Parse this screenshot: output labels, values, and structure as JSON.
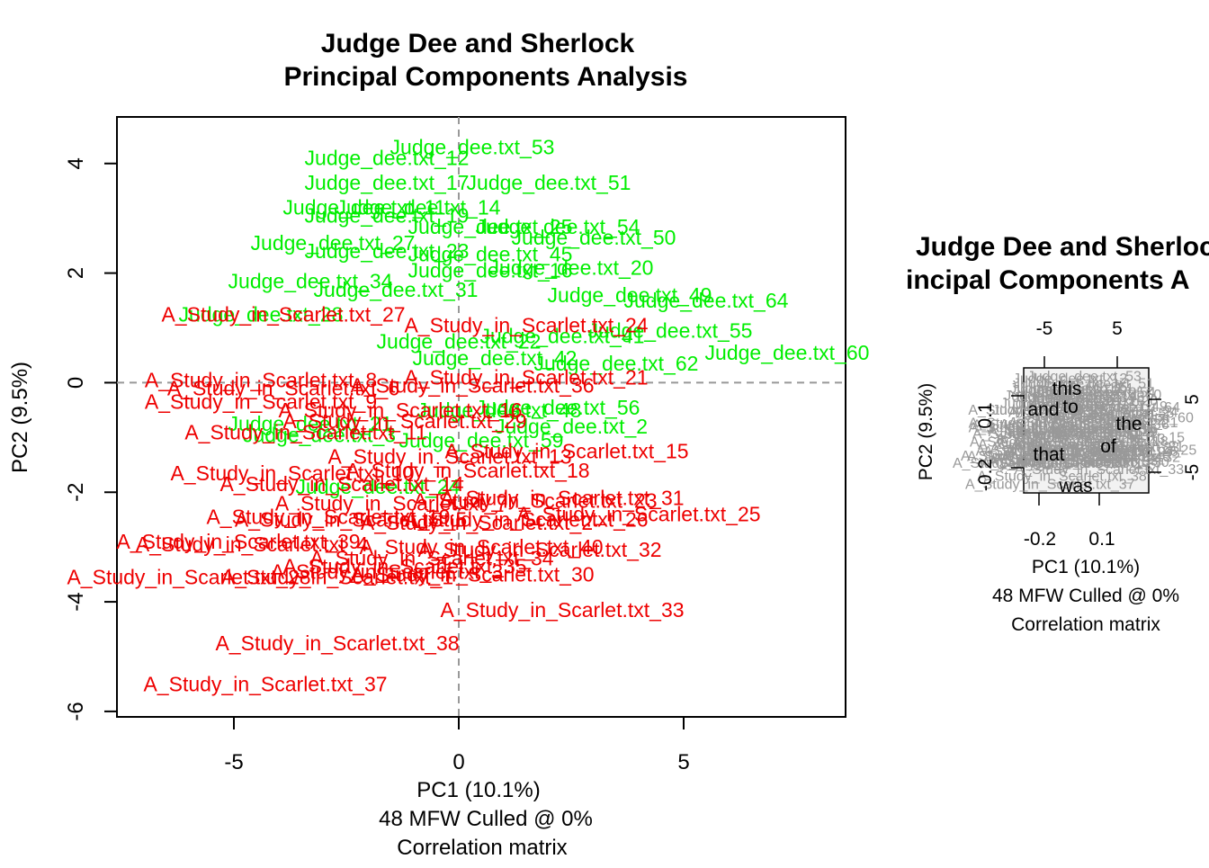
{
  "colors": {
    "judge": "#00ee00",
    "scarlet": "#ee0000",
    "axis": "#000000",
    "guide": "#999999",
    "secondary_labels": "#999999"
  },
  "chart_data": [
    {
      "type": "scatter",
      "title": "Judge Dee and Sherlock\nPrincipal Components Analysis",
      "title_lines": [
        "Judge Dee and Sherlock",
        "Principal Components Analysis"
      ],
      "xlabel": "PC1 (10.1%)",
      "ylabel": "PC2 (9.5%)",
      "sublabels": [
        "48 MFW  Culled @ 0%",
        "Correlation matrix"
      ],
      "xlim": [
        -7.6,
        8.6
      ],
      "ylim": [
        -6.1,
        4.85
      ],
      "xticks": [
        -5,
        0,
        5
      ],
      "yticks": [
        -6,
        -4,
        -2,
        0,
        2,
        4
      ],
      "grid": false,
      "zero_lines": true,
      "legend": "none",
      "series": [
        {
          "name": "Judge_dee",
          "points": [
            {
              "label": "Judge_dee.txt_53",
              "x": 0.3,
              "y": 4.3
            },
            {
              "label": "Judge_dee.txt_12",
              "x": -1.6,
              "y": 4.1
            },
            {
              "label": "Judge_dee.txt_17",
              "x": -1.6,
              "y": 3.65
            },
            {
              "label": "Judge_dee.txt_51",
              "x": 2.0,
              "y": 3.65
            },
            {
              "label": "Judge_dee.txt_11",
              "x": -2.1,
              "y": 3.2
            },
            {
              "label": "Judge_dee.txt_14",
              "x": -0.9,
              "y": 3.2
            },
            {
              "label": "Judge_dee.txt_19",
              "x": -1.6,
              "y": 3.05
            },
            {
              "label": "Judge_dee.txt_25",
              "x": 0.7,
              "y": 2.85
            },
            {
              "label": "Judge_dee.txt_54",
              "x": 2.2,
              "y": 2.85
            },
            {
              "label": "Judge_dee.txt_50",
              "x": 3.0,
              "y": 2.65
            },
            {
              "label": "Judge_dee.txt_27",
              "x": -2.8,
              "y": 2.55
            },
            {
              "label": "Judge_dee.txt_23",
              "x": -1.6,
              "y": 2.4
            },
            {
              "label": "Judge_dee.txt_45",
              "x": 0.7,
              "y": 2.35
            },
            {
              "label": "Judge_dee.txt_20",
              "x": 2.5,
              "y": 2.1
            },
            {
              "label": "Judge_dee.txt_16",
              "x": 0.7,
              "y": 2.05
            },
            {
              "label": "Judge_dee.txt_34",
              "x": -3.3,
              "y": 1.85
            },
            {
              "label": "Judge_dee.txt_31",
              "x": -1.4,
              "y": 1.7
            },
            {
              "label": "Judge_dee.txt_49",
              "x": 3.8,
              "y": 1.6
            },
            {
              "label": "Judge_dee.txt_64",
              "x": 5.5,
              "y": 1.5
            },
            {
              "label": "Judge_dee.txt_28",
              "x": -4.4,
              "y": 1.25
            },
            {
              "label": "Judge_dee.txt_55",
              "x": 4.7,
              "y": 0.95
            },
            {
              "label": "Judge_dee.txt_41",
              "x": 2.3,
              "y": 0.85
            },
            {
              "label": "Judge_dee.txt_22",
              "x": 0.0,
              "y": 0.75
            },
            {
              "label": "Judge_dee.txt_60",
              "x": 7.3,
              "y": 0.55
            },
            {
              "label": "Judge_dee.txt_42",
              "x": 0.8,
              "y": 0.45
            },
            {
              "label": "Judge_dee.txt_62",
              "x": 3.5,
              "y": 0.35
            },
            {
              "label": "Judge_dee.txt_56",
              "x": 2.2,
              "y": -0.45
            },
            {
              "label": "Judge_dee.txt_48",
              "x": 0.9,
              "y": -0.5
            },
            {
              "label": "Judge_dee.txt_2",
              "x": 2.5,
              "y": -0.8
            },
            {
              "label": "Judge_dee.txt_59",
              "x": 0.5,
              "y": -1.05
            },
            {
              "label": "Judge_dee.txt_21",
              "x": -3.3,
              "y": -0.75
            },
            {
              "label": "Judge_dee.txt_3",
              "x": -3.1,
              "y": -0.95
            },
            {
              "label": "Judge_dee.txt_24",
              "x": -1.8,
              "y": -1.9
            }
          ]
        },
        {
          "name": "A_Study_in_Scarlet",
          "points": [
            {
              "label": "A_Study_in_Scarlet.txt_27",
              "x": -3.9,
              "y": 1.25
            },
            {
              "label": "A_Study_in_Scarlet.txt_24",
              "x": 1.5,
              "y": 1.05
            },
            {
              "label": "A_Study_in_Scarlet.txt_8",
              "x": -4.4,
              "y": 0.05
            },
            {
              "label": "A_Study_in_Scarlet.txt_21",
              "x": 1.5,
              "y": 0.1
            },
            {
              "label": "A_Study_in_Scarlet.txt_6",
              "x": -3.9,
              "y": -0.1
            },
            {
              "label": "A_Study_in_Scarlet.txt_36",
              "x": 0.3,
              "y": -0.05
            },
            {
              "label": "A_Study_in_Scarlet.txt_9",
              "x": -4.4,
              "y": -0.35
            },
            {
              "label": "A_Study_in_Scarlet.txt_16",
              "x": -1.3,
              "y": -0.5
            },
            {
              "label": "A_Study_in_Scarlet.txt_29",
              "x": -1.2,
              "y": -0.7
            },
            {
              "label": "A_Study_in_Scarlet.txt_11",
              "x": -3.4,
              "y": -0.9
            },
            {
              "label": "A_Study_in_Scarlet.txt_15",
              "x": 2.4,
              "y": -1.25
            },
            {
              "label": "A_Study_in_Scarlet.txt_13",
              "x": -0.2,
              "y": -1.35
            },
            {
              "label": "A_Study_in_Scarlet.txt_18",
              "x": 0.2,
              "y": -1.6
            },
            {
              "label": "A_Study_in_Scarlet.txt_10",
              "x": -3.7,
              "y": -1.65
            },
            {
              "label": "A_Study_in_Scarlet.txt_14",
              "x": -2.6,
              "y": -1.85
            },
            {
              "label": "A_Study_in_Scarlet.txt_31",
              "x": 2.3,
              "y": -2.1
            },
            {
              "label": "A_Study_in_Scarlet.txt_23",
              "x": 1.7,
              "y": -2.15
            },
            {
              "label": "A_Study_in_Scarlet.txt_7",
              "x": -1.5,
              "y": -2.2
            },
            {
              "label": "A_Study_in_Scarlet.txt_25",
              "x": 4.0,
              "y": -2.4
            },
            {
              "label": "A_Study_in_Scarlet.txt_26",
              "x": 1.5,
              "y": -2.5
            },
            {
              "label": "A_Study_in_Scarlet.txt_19",
              "x": -2.9,
              "y": -2.45
            },
            {
              "label": "A_Study_in_Scarlet.txt_5",
              "x": -2.4,
              "y": -2.5
            },
            {
              "label": "A_Study_in_Scarlet.txt_2",
              "x": 0.4,
              "y": -2.55
            },
            {
              "label": "A_Study_in_Scarlet.txt_39",
              "x": -4.9,
              "y": -2.9
            },
            {
              "label": "A_Study_in_Scarlet.txt_4",
              "x": -4.6,
              "y": -2.95
            },
            {
              "label": "A_Study_in_Scarlet.txt_40",
              "x": 0.5,
              "y": -3.0
            },
            {
              "label": "A_Study_in_Scarlet.txt_32",
              "x": 1.8,
              "y": -3.05
            },
            {
              "label": "A_Study_in_Scarlet.txt_34",
              "x": -0.6,
              "y": -3.2
            },
            {
              "label": "A_Study_in_Scarlet.txt_35",
              "x": -1.2,
              "y": -3.35
            },
            {
              "label": "A_Study_in_Scarlet.txt_3",
              "x": -1.6,
              "y": -3.45
            },
            {
              "label": "A_Study_in_Scarlet.txt_30",
              "x": 0.3,
              "y": -3.5
            },
            {
              "label": "A_Study_in_Scarlet.txt_28",
              "x": -6.0,
              "y": -3.55
            },
            {
              "label": "A_Study_in_Scarlet.txt_1",
              "x": -2.7,
              "y": -3.55
            },
            {
              "label": "A_Study_in_Scarlet.txt_33",
              "x": 2.3,
              "y": -4.15
            },
            {
              "label": "A_Study_in_Scarlet.txt_38",
              "x": -2.7,
              "y": -4.75
            },
            {
              "label": "A_Study_in_Scarlet.txt_37",
              "x": -4.3,
              "y": -5.5
            }
          ]
        }
      ]
    },
    {
      "type": "scatter",
      "title": "Judge Dee and Sherlock\nPrincipal Components Analysis",
      "title_lines_visible": [
        "Judge Dee and Sherloc",
        "incipal Components A"
      ],
      "xlabel": "PC1 (10.1%)",
      "ylabel": "PC2 (9.5%)",
      "sublabels": [
        "48 MFW  Culled @ 0%",
        "Correlation matrix"
      ],
      "xticks_bottom": [
        "-0.2",
        "0.1"
      ],
      "yticks_left": [
        "-0.2",
        "0.1"
      ],
      "xticks_top": [
        "-5",
        "5"
      ],
      "yticks_right": [
        "-5",
        "5"
      ],
      "word_labels": [
        "this",
        "to",
        "and",
        "the",
        "of",
        "was",
        "that"
      ],
      "legend": "none"
    }
  ]
}
